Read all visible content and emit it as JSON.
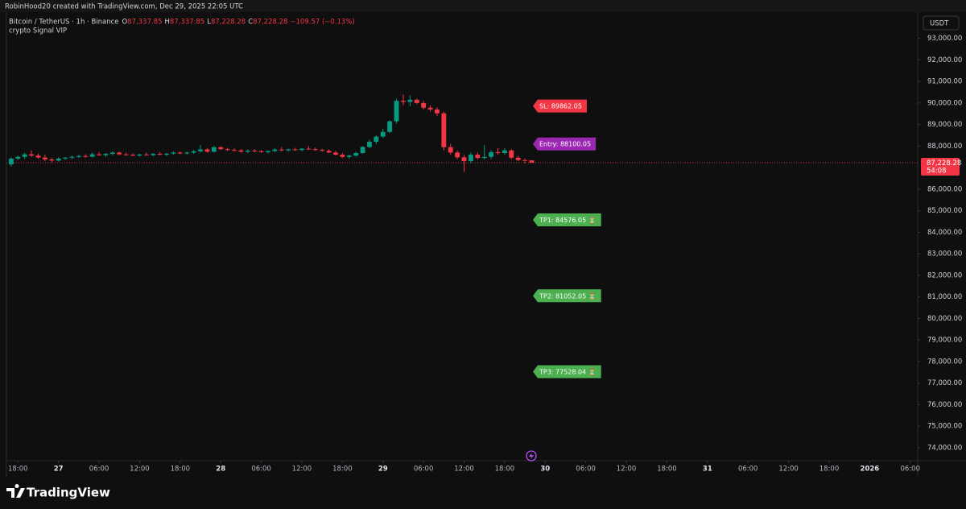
{
  "header": "RobinHood20 created with TradingView.com, Dec 29, 2025 22:05 UTC",
  "footer": "TradingView",
  "chart_data": {
    "type": "candlestick",
    "title": "Bitcoin / TetherUS · 1h · Binance",
    "subtitle": "crypto Signal VIP",
    "unit": "USDT",
    "ohlc": [
      {
        "label": "O",
        "value": "87,337.85"
      },
      {
        "label": "H",
        "value": "87,337.85"
      },
      {
        "label": "L",
        "value": "87,228.28"
      },
      {
        "label": "C",
        "value": "87,228.28"
      }
    ],
    "change": "−109.57 (−0.13%)",
    "up_color": "#089981",
    "down_color": "#f23645",
    "x": [
      -1,
      0,
      1,
      2,
      3,
      4,
      5,
      6,
      7,
      8,
      9,
      10,
      11,
      12,
      13,
      14,
      15,
      16,
      17,
      18,
      19,
      20,
      21,
      22,
      23,
      24,
      25,
      26,
      27,
      28,
      29,
      30,
      31,
      32,
      33,
      34,
      35,
      36,
      37,
      38,
      39,
      40,
      41,
      42,
      43,
      44,
      45,
      46,
      47,
      48,
      49,
      50,
      51,
      52,
      53,
      54,
      55,
      56,
      57,
      58,
      59,
      60,
      61,
      62,
      63,
      64,
      65,
      66,
      67,
      68,
      69,
      70,
      71,
      72,
      73,
      74,
      75,
      76
    ],
    "open": [
      87150,
      87420,
      87500,
      87620,
      87560,
      87470,
      87380,
      87330,
      87420,
      87460,
      87500,
      87540,
      87510,
      87620,
      87580,
      87640,
      87700,
      87620,
      87600,
      87560,
      87610,
      87580,
      87640,
      87600,
      87650,
      87700,
      87660,
      87700,
      87760,
      87850,
      87740,
      87950,
      87860,
      87820,
      87800,
      87740,
      87790,
      87760,
      87720,
      87770,
      87840,
      87800,
      87850,
      87820,
      87880,
      87860,
      87820,
      87780,
      87700,
      87600,
      87500,
      87560,
      87680,
      87960,
      88200,
      88440,
      88660,
      89150,
      90100,
      90050,
      90150,
      90000,
      89780,
      89700,
      89520,
      87950,
      87700,
      87480,
      87300,
      87600,
      87450,
      87500,
      87720,
      87680,
      87800,
      87460,
      87350,
      87337.85
    ],
    "high": [
      87480,
      87560,
      87700,
      87800,
      87650,
      87600,
      87450,
      87480,
      87500,
      87560,
      87600,
      87620,
      87700,
      87720,
      87680,
      87760,
      87740,
      87700,
      87660,
      87640,
      87700,
      87680,
      87720,
      87680,
      87750,
      87760,
      87740,
      87820,
      88050,
      87900,
      88000,
      88000,
      87920,
      87900,
      87860,
      87840,
      87860,
      87820,
      87800,
      87900,
      87950,
      87880,
      87920,
      87900,
      88000,
      87940,
      87880,
      87850,
      87780,
      87680,
      87600,
      87740,
      88000,
      88300,
      88500,
      88800,
      89200,
      90200,
      90400,
      90350,
      90200,
      90100,
      89900,
      89800,
      89600,
      88100,
      87800,
      87600,
      87700,
      87700,
      88050,
      87800,
      87900,
      87900,
      87850,
      87550,
      87420,
      87337.85
    ],
    "low": [
      87050,
      87350,
      87400,
      87500,
      87420,
      87300,
      87250,
      87280,
      87350,
      87400,
      87440,
      87470,
      87480,
      87550,
      87500,
      87580,
      87580,
      87550,
      87530,
      87500,
      87560,
      87520,
      87580,
      87540,
      87600,
      87620,
      87600,
      87640,
      87700,
      87700,
      87700,
      87820,
      87780,
      87760,
      87700,
      87680,
      87720,
      87680,
      87660,
      87720,
      87760,
      87740,
      87780,
      87760,
      87820,
      87780,
      87740,
      87680,
      87560,
      87440,
      87420,
      87500,
      87640,
      87900,
      88100,
      88380,
      88600,
      89050,
      89900,
      89850,
      89950,
      89700,
      89600,
      89400,
      87800,
      87600,
      87400,
      86800,
      87200,
      87380,
      87380,
      87400,
      87600,
      87600,
      87400,
      87300,
      87200,
      87228.28
    ],
    "close": [
      87420,
      87500,
      87620,
      87560,
      87470,
      87380,
      87330,
      87420,
      87460,
      87500,
      87540,
      87510,
      87620,
      87580,
      87640,
      87700,
      87620,
      87600,
      87560,
      87610,
      87580,
      87640,
      87600,
      87650,
      87700,
      87660,
      87700,
      87760,
      87850,
      87740,
      87950,
      87860,
      87820,
      87800,
      87740,
      87790,
      87760,
      87720,
      87770,
      87840,
      87800,
      87850,
      87820,
      87880,
      87860,
      87820,
      87780,
      87700,
      87600,
      87500,
      87560,
      87680,
      87960,
      88200,
      88440,
      88660,
      89150,
      90100,
      90050,
      90150,
      90000,
      89780,
      89700,
      89520,
      87950,
      87700,
      87480,
      87300,
      87600,
      87450,
      87500,
      87720,
      87680,
      87800,
      87460,
      87350,
      87337.85,
      87228.28
    ],
    "xlim": [
      -1.7,
      133.1
    ],
    "xticks": [
      {
        "value": 0,
        "label": "18:00"
      },
      {
        "value": 6,
        "label": "27"
      },
      {
        "value": 12,
        "label": "06:00"
      },
      {
        "value": 18,
        "label": "12:00"
      },
      {
        "value": 24,
        "label": "18:00"
      },
      {
        "value": 30,
        "label": "28"
      },
      {
        "value": 36,
        "label": "06:00"
      },
      {
        "value": 42,
        "label": "12:00"
      },
      {
        "value": 48,
        "label": "18:00"
      },
      {
        "value": 54,
        "label": "29"
      },
      {
        "value": 60,
        "label": "06:00"
      },
      {
        "value": 66,
        "label": "12:00"
      },
      {
        "value": 72,
        "label": "18:00"
      },
      {
        "value": 78,
        "label": "30"
      },
      {
        "value": 84,
        "label": "06:00"
      },
      {
        "value": 90,
        "label": "12:00"
      },
      {
        "value": 96,
        "label": "18:00"
      },
      {
        "value": 102,
        "label": "31"
      },
      {
        "value": 108,
        "label": "06:00"
      },
      {
        "value": 114,
        "label": "12:00"
      },
      {
        "value": 120,
        "label": "18:00"
      },
      {
        "value": 126,
        "label": "2026"
      },
      {
        "value": 132,
        "label": "06:00"
      }
    ],
    "ylim": [
      73400,
      94220
    ],
    "yticks": [
      {
        "value": 74000,
        "label": "74,000.00"
      },
      {
        "value": 75000,
        "label": "75,000.00"
      },
      {
        "value": 76000,
        "label": "76,000.00"
      },
      {
        "value": 77000,
        "label": "77,000.00"
      },
      {
        "value": 78000,
        "label": "78,000.00"
      },
      {
        "value": 79000,
        "label": "79,000.00"
      },
      {
        "value": 80000,
        "label": "80,000.00"
      },
      {
        "value": 81000,
        "label": "81,000.00"
      },
      {
        "value": 82000,
        "label": "82,000.00"
      },
      {
        "value": 83000,
        "label": "83,000.00"
      },
      {
        "value": 84000,
        "label": "84,000.00"
      },
      {
        "value": 85000,
        "label": "85,000.00"
      },
      {
        "value": 86000,
        "label": "86,000.00"
      },
      {
        "value": 88000,
        "label": "88,000.00"
      },
      {
        "value": 89000,
        "label": "89,000.00"
      },
      {
        "value": 90000,
        "label": "90,000.00"
      },
      {
        "value": 91000,
        "label": "91,000.00"
      },
      {
        "value": 92000,
        "label": "92,000.00"
      },
      {
        "value": 93000,
        "label": "93,000.00"
      }
    ],
    "last_price": {
      "value": 87228.28,
      "label": "87,228.28"
    },
    "countdown": "54:08",
    "annotations": [
      {
        "text": "SL: 89862.05",
        "value": 89862.05,
        "color": "#f23645"
      },
      {
        "text": "Entry: 88100.05",
        "value": 88100.05,
        "color": "#9c27b0"
      },
      {
        "text": "TP1: 84576.05 ⏳",
        "value": 84576.05,
        "color": "#4caf50"
      },
      {
        "text": "TP2: 81052.05 ⏳",
        "value": 81052.05,
        "color": "#4caf50"
      },
      {
        "text": "TP3: 77528.04 ⏳",
        "value": 77528.04,
        "color": "#4caf50"
      }
    ]
  }
}
